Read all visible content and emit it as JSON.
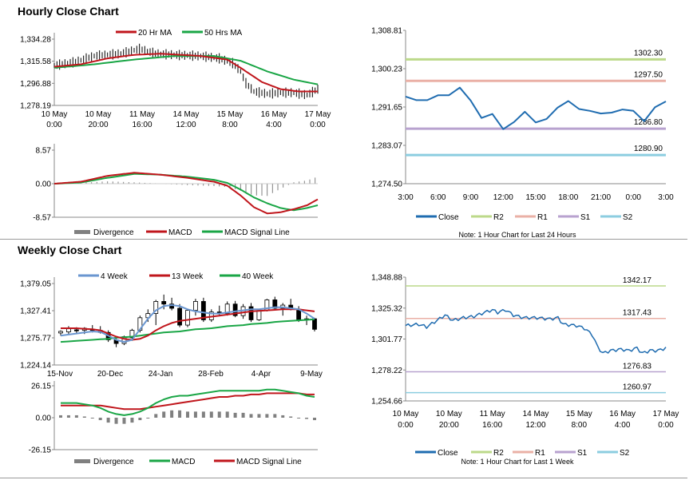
{
  "titles": {
    "hourly": "Hourly Close Chart",
    "weekly": "Weekly Close Chart"
  },
  "colors": {
    "ma_short": "#c0161c",
    "ma_long": "#1aa646",
    "price": "#000000",
    "macd": "#c0161c",
    "signal": "#1aa646",
    "divergence": "#808080",
    "close": "#1f6cb0",
    "r2": "#bcd98a",
    "r1": "#eab0a6",
    "s1": "#b8a2cf",
    "s2": "#8ccde0",
    "wk4": "#6a96d0",
    "wk13": "#c0161c",
    "wk40": "#1aa646"
  },
  "chart_data": [
    {
      "id": "hourly_price",
      "type": "line",
      "legend": [
        "20 Hr MA",
        "50 Hrs MA"
      ],
      "yticks": [
        "1,334.28",
        "1,315.58",
        "1,296.88",
        "1,278.19"
      ],
      "ylim": [
        1278.19,
        1334.28
      ],
      "xlabels": [
        [
          "10 May",
          "0:00"
        ],
        [
          "10 May",
          "20:00"
        ],
        [
          "11 May",
          "16:00"
        ],
        [
          "14 May",
          "12:00"
        ],
        [
          "15 May",
          "8:00"
        ],
        [
          "16 May",
          "4:00"
        ],
        [
          "17 May",
          "0:00"
        ]
      ],
      "n": 100,
      "price_knots": [
        [
          0,
          1312
        ],
        [
          8,
          1315
        ],
        [
          15,
          1320
        ],
        [
          25,
          1322
        ],
        [
          32,
          1326
        ],
        [
          38,
          1322
        ],
        [
          45,
          1321
        ],
        [
          55,
          1320
        ],
        [
          62,
          1318
        ],
        [
          67,
          1314
        ],
        [
          70,
          1307
        ],
        [
          72,
          1297
        ],
        [
          75,
          1290
        ],
        [
          80,
          1288
        ],
        [
          85,
          1289
        ],
        [
          90,
          1289
        ],
        [
          95,
          1287
        ],
        [
          99,
          1292
        ]
      ],
      "ma20_knots": [
        [
          0,
          1311
        ],
        [
          10,
          1313
        ],
        [
          20,
          1318
        ],
        [
          30,
          1321
        ],
        [
          40,
          1322
        ],
        [
          55,
          1320
        ],
        [
          65,
          1317
        ],
        [
          70,
          1310
        ],
        [
          78,
          1298
        ],
        [
          85,
          1292
        ],
        [
          92,
          1290
        ],
        [
          99,
          1290
        ]
      ],
      "ma50_knots": [
        [
          0,
          1310
        ],
        [
          15,
          1313
        ],
        [
          30,
          1317
        ],
        [
          45,
          1320
        ],
        [
          60,
          1320
        ],
        [
          70,
          1316
        ],
        [
          80,
          1307
        ],
        [
          90,
          1300
        ],
        [
          99,
          1296
        ]
      ]
    },
    {
      "id": "hourly_macd",
      "type": "line",
      "legend": [
        "Divergence",
        "MACD",
        "MACD Signal Line"
      ],
      "yticks": [
        "8.57",
        "0.00",
        "-8.57"
      ],
      "ylim": [
        -8.57,
        8.57
      ],
      "n": 100,
      "macd_knots": [
        [
          0,
          0
        ],
        [
          10,
          0.5
        ],
        [
          20,
          2
        ],
        [
          30,
          2.8
        ],
        [
          40,
          2.3
        ],
        [
          50,
          1.5
        ],
        [
          60,
          0.5
        ],
        [
          65,
          -0.5
        ],
        [
          70,
          -3
        ],
        [
          75,
          -6
        ],
        [
          80,
          -7.6
        ],
        [
          85,
          -7.3
        ],
        [
          90,
          -6.5
        ],
        [
          95,
          -5.5
        ],
        [
          99,
          -4
        ]
      ],
      "signal_knots": [
        [
          0,
          0
        ],
        [
          10,
          0.3
        ],
        [
          20,
          1.5
        ],
        [
          30,
          2.5
        ],
        [
          40,
          2.3
        ],
        [
          50,
          1.8
        ],
        [
          60,
          1
        ],
        [
          65,
          0.2
        ],
        [
          70,
          -1.5
        ],
        [
          75,
          -3.5
        ],
        [
          80,
          -5
        ],
        [
          85,
          -6.2
        ],
        [
          90,
          -6.8
        ],
        [
          95,
          -6.2
        ],
        [
          99,
          -5.5
        ]
      ]
    },
    {
      "id": "hourly_close_24h",
      "type": "line",
      "yticks": [
        "1,308.81",
        "1,300.23",
        "1,291.65",
        "1,283.07",
        "1,274.50"
      ],
      "ylim": [
        1274.5,
        1308.81
      ],
      "xticks": [
        "3:00",
        "6:00",
        "9:00",
        "12:00",
        "15:00",
        "18:00",
        "21:00",
        "0:00",
        "3:00"
      ],
      "close": [
        1294,
        1293.2,
        1293.2,
        1294.3,
        1294.3,
        1296,
        1293.1,
        1289.2,
        1290.1,
        1286.7,
        1288.3,
        1290.6,
        1288.2,
        1289,
        1291.5,
        1293,
        1291.2,
        1290.8,
        1290.2,
        1290.4,
        1291.1,
        1290.8,
        1288.5,
        1291.6,
        1292.9
      ],
      "levels": [
        {
          "name": "R2",
          "value": 1302.3,
          "label": "1302.30"
        },
        {
          "name": "R1",
          "value": 1297.5,
          "label": "1297.50"
        },
        {
          "name": "S1",
          "value": 1286.8,
          "label": "1286.80"
        },
        {
          "name": "S2",
          "value": 1280.9,
          "label": "1280.90"
        }
      ],
      "legend": [
        "Close",
        "R2",
        "R1",
        "S1",
        "S2"
      ],
      "note": "Note: 1 Hour Chart for Last 24 Hours"
    },
    {
      "id": "weekly_price",
      "type": "candlestick",
      "legend": [
        "4 Week",
        "13 Week",
        "40 Week"
      ],
      "yticks": [
        "1,379.05",
        "1,327.41",
        "1,275.77",
        "1,224.14"
      ],
      "ylim": [
        1224.14,
        1379.05
      ],
      "xticks": [
        "15-Nov",
        "20-Dec",
        "24-Jan",
        "28-Feb",
        "4-Apr",
        "9-May"
      ],
      "candles": [
        [
          1285,
          1290,
          1280,
          1288
        ],
        [
          1287,
          1298,
          1282,
          1293
        ],
        [
          1291,
          1296,
          1284,
          1289
        ],
        [
          1290,
          1296,
          1283,
          1294
        ],
        [
          1292,
          1300,
          1286,
          1290
        ],
        [
          1290,
          1298,
          1284,
          1286
        ],
        [
          1286,
          1290,
          1268,
          1272
        ],
        [
          1272,
          1278,
          1258,
          1265
        ],
        [
          1265,
          1280,
          1262,
          1278
        ],
        [
          1276,
          1293,
          1270,
          1290
        ],
        [
          1290,
          1318,
          1286,
          1314
        ],
        [
          1314,
          1330,
          1306,
          1322
        ],
        [
          1322,
          1348,
          1300,
          1345
        ],
        [
          1345,
          1358,
          1330,
          1340
        ],
        [
          1340,
          1352,
          1328,
          1332
        ],
        [
          1332,
          1340,
          1296,
          1300
        ],
        [
          1300,
          1330,
          1296,
          1328
        ],
        [
          1328,
          1350,
          1318,
          1345
        ],
        [
          1345,
          1352,
          1306,
          1310
        ],
        [
          1310,
          1330,
          1306,
          1325
        ],
        [
          1325,
          1337,
          1318,
          1322
        ],
        [
          1322,
          1345,
          1318,
          1340
        ],
        [
          1340,
          1346,
          1315,
          1318
        ],
        [
          1318,
          1340,
          1312,
          1335
        ],
        [
          1335,
          1342,
          1306,
          1310
        ],
        [
          1310,
          1330,
          1308,
          1328
        ],
        [
          1328,
          1350,
          1326,
          1348
        ],
        [
          1348,
          1354,
          1328,
          1332
        ],
        [
          1332,
          1342,
          1318,
          1338
        ],
        [
          1338,
          1350,
          1328,
          1330
        ],
        [
          1328,
          1336,
          1306,
          1310
        ],
        [
          1310,
          1318,
          1300,
          1312
        ],
        [
          1312,
          1314,
          1288,
          1292
        ]
      ],
      "wk4": [
        1280,
        1282,
        1284,
        1286,
        1288,
        1287,
        1280,
        1272,
        1268,
        1272,
        1292,
        1312,
        1328,
        1336,
        1338,
        1336,
        1330,
        1326,
        1324,
        1322,
        1322,
        1324,
        1326,
        1328,
        1330,
        1330,
        1332,
        1334,
        1334,
        1332,
        1330,
        1322,
        1312
      ],
      "wk13": [
        1294,
        1294,
        1294,
        1293,
        1292,
        1290,
        1284,
        1278,
        1274,
        1272,
        1274,
        1280,
        1290,
        1298,
        1304,
        1308,
        1310,
        1312,
        1314,
        1316,
        1318,
        1320,
        1322,
        1324,
        1326,
        1327,
        1328,
        1329,
        1330,
        1330,
        1330,
        1328,
        1326
      ],
      "wk40": [
        1268,
        1269,
        1270,
        1271,
        1272,
        1273,
        1274,
        1276,
        1277,
        1278,
        1280,
        1282,
        1284,
        1286,
        1287,
        1288,
        1290,
        1292,
        1293,
        1294,
        1296,
        1298,
        1299,
        1300,
        1302,
        1303,
        1304,
        1306,
        1307,
        1308,
        1309,
        1310,
        1311
      ]
    },
    {
      "id": "weekly_macd",
      "type": "line",
      "legend": [
        "Divergence",
        "MACD",
        "MACD Signal Line"
      ],
      "yticks": [
        "26.15",
        "0.00",
        "-26.15"
      ],
      "ylim": [
        -26.15,
        26.15
      ],
      "macd": [
        12,
        12,
        12,
        11,
        10,
        8,
        5,
        3,
        2,
        3,
        5,
        8,
        12,
        15,
        17,
        18,
        18,
        19,
        20,
        21,
        22,
        22,
        22,
        22,
        22,
        22,
        23,
        23,
        22,
        21,
        20,
        18,
        17
      ],
      "signal": [
        10,
        10,
        10,
        10,
        10,
        10,
        9,
        8,
        7,
        7,
        7,
        8,
        9,
        10,
        11,
        12,
        13,
        14,
        15,
        16,
        17,
        17,
        18,
        18,
        19,
        19,
        20,
        20,
        20,
        20,
        20,
        19,
        19
      ],
      "divergence": [
        2,
        2,
        2,
        1,
        0,
        -2,
        -4,
        -5,
        -5,
        -4,
        -2,
        0,
        3,
        5,
        6,
        6,
        5,
        5,
        5,
        5,
        5,
        5,
        4,
        4,
        3,
        3,
        3,
        3,
        2,
        1,
        0,
        -1,
        -2
      ]
    },
    {
      "id": "weekly_close_hourly",
      "type": "line",
      "yticks": [
        "1,348.88",
        "1,325.32",
        "1,301.77",
        "1,278.22",
        "1,254.66"
      ],
      "ylim": [
        1254.66,
        1348.88
      ],
      "xlabels": [
        [
          "10 May",
          "0:00"
        ],
        [
          "10 May",
          "20:00"
        ],
        [
          "11 May",
          "16:00"
        ],
        [
          "14 May",
          "12:00"
        ],
        [
          "15 May",
          "8:00"
        ],
        [
          "16 May",
          "4:00"
        ],
        [
          "17 May",
          "0:00"
        ]
      ],
      "close_knots": [
        [
          0,
          1312
        ],
        [
          5,
          1313
        ],
        [
          8,
          1311
        ],
        [
          12,
          1316
        ],
        [
          15,
          1320
        ],
        [
          18,
          1316
        ],
        [
          22,
          1318
        ],
        [
          26,
          1319
        ],
        [
          30,
          1322
        ],
        [
          33,
          1324
        ],
        [
          35,
          1322
        ],
        [
          38,
          1324
        ],
        [
          41,
          1320
        ],
        [
          45,
          1318
        ],
        [
          50,
          1318
        ],
        [
          55,
          1317
        ],
        [
          58,
          1318
        ],
        [
          60,
          1313
        ],
        [
          65,
          1312
        ],
        [
          68,
          1310
        ],
        [
          71,
          1305
        ],
        [
          73,
          1296
        ],
        [
          75,
          1291
        ],
        [
          78,
          1293
        ],
        [
          82,
          1294
        ],
        [
          85,
          1293
        ],
        [
          88,
          1295
        ],
        [
          90,
          1291
        ],
        [
          93,
          1293
        ],
        [
          96,
          1293
        ],
        [
          99,
          1295
        ]
      ],
      "levels": [
        {
          "name": "R2",
          "value": 1342.17,
          "label": "1342.17"
        },
        {
          "name": "R1",
          "value": 1317.43,
          "label": "1317.43"
        },
        {
          "name": "S1",
          "value": 1276.83,
          "label": "1276.83"
        },
        {
          "name": "S2",
          "value": 1260.97,
          "label": "1260.97"
        }
      ],
      "legend": [
        "Close",
        "R2",
        "R1",
        "S1",
        "S2"
      ],
      "note": "Note: 1 Hour Chart for Last 1 Week"
    }
  ]
}
